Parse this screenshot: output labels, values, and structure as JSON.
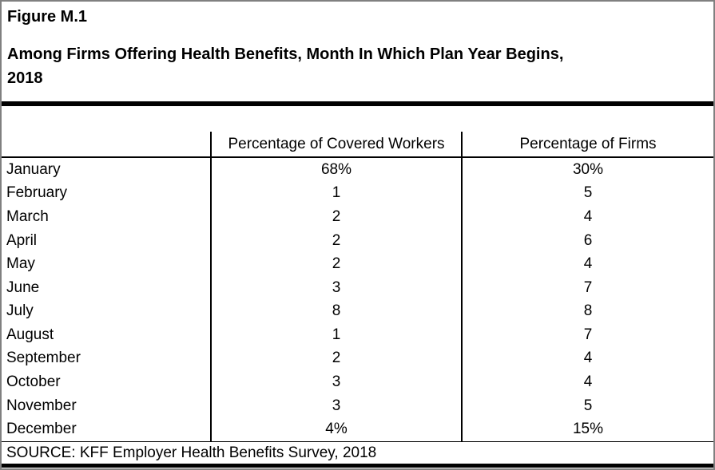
{
  "header": {
    "figure_label": "Figure M.1",
    "title_line1": "Among Firms Offering Health Benefits, Month In Which Plan Year Begins,",
    "title_line2": "2018"
  },
  "table": {
    "columns": [
      "",
      "Percentage of Covered Workers",
      "Percentage of Firms"
    ],
    "rows": [
      {
        "month": "January",
        "covered_workers": "68%",
        "firms": "30%"
      },
      {
        "month": "February",
        "covered_workers": "1",
        "firms": "5"
      },
      {
        "month": "March",
        "covered_workers": "2",
        "firms": "4"
      },
      {
        "month": "April",
        "covered_workers": "2",
        "firms": "6"
      },
      {
        "month": "May",
        "covered_workers": "2",
        "firms": "4"
      },
      {
        "month": "June",
        "covered_workers": "3",
        "firms": "7"
      },
      {
        "month": "July",
        "covered_workers": "8",
        "firms": "8"
      },
      {
        "month": "August",
        "covered_workers": "1",
        "firms": "7"
      },
      {
        "month": "September",
        "covered_workers": "2",
        "firms": "4"
      },
      {
        "month": "October",
        "covered_workers": "3",
        "firms": "4"
      },
      {
        "month": "November",
        "covered_workers": "3",
        "firms": "5"
      },
      {
        "month": "December",
        "covered_workers": "4%",
        "firms": "15%"
      }
    ]
  },
  "footer": {
    "source": "SOURCE: KFF Employer Health Benefits Survey, 2018"
  },
  "colors": {
    "background": "#ffffff",
    "text": "#000000",
    "rule": "#000000",
    "outer_border": "#808080"
  },
  "chart_data": {
    "type": "table",
    "figure_label": "Figure M.1",
    "title": "Among Firms Offering Health Benefits, Month In Which Plan Year Begins, 2018",
    "categories": [
      "January",
      "February",
      "March",
      "April",
      "May",
      "June",
      "July",
      "August",
      "September",
      "October",
      "November",
      "December"
    ],
    "series": [
      {
        "name": "Percentage of Covered Workers",
        "unit": "percent",
        "values": [
          68,
          1,
          2,
          2,
          2,
          3,
          8,
          1,
          2,
          3,
          3,
          4
        ]
      },
      {
        "name": "Percentage of Firms",
        "unit": "percent",
        "values": [
          30,
          5,
          4,
          6,
          4,
          7,
          8,
          7,
          4,
          4,
          5,
          15
        ]
      }
    ],
    "source": "SOURCE: KFF Employer Health Benefits Survey, 2018"
  }
}
